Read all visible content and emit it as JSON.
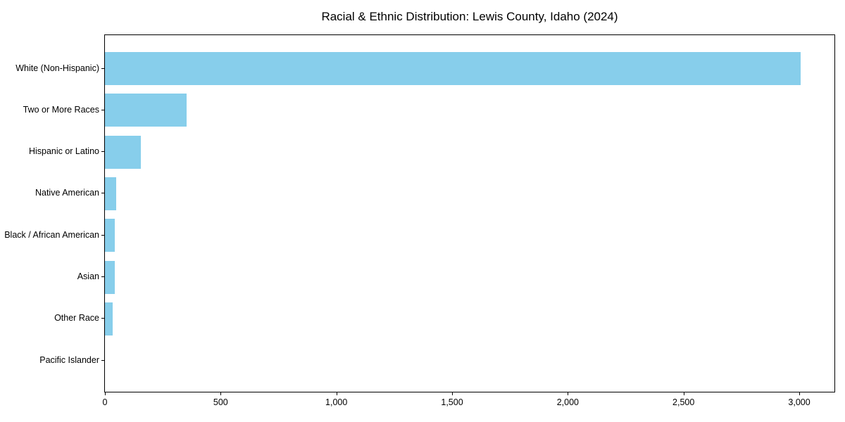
{
  "figure": {
    "background": "#ffffff"
  },
  "chart_data": {
    "type": "bar",
    "orientation": "horizontal",
    "title": "Racial & Ethnic Distribution: Lewis County, Idaho (2024)",
    "categories": [
      "White (Non-Hispanic)",
      "Two or More Races",
      "Hispanic or Latino",
      "Native American",
      "Black / African American",
      "Asian",
      "Other Race",
      "Pacific Islander"
    ],
    "values": [
      3005,
      353,
      155,
      48,
      44,
      42,
      34,
      0
    ],
    "bar_color": "#87ceeb",
    "xlabel": "",
    "ylabel": "",
    "xlim": [
      0,
      3152
    ],
    "x_ticks": [
      0,
      500,
      1000,
      1500,
      2000,
      2500,
      3000
    ],
    "x_tick_labels": [
      "0",
      "500",
      "1,000",
      "1,500",
      "2,000",
      "2,500",
      "3,000"
    ],
    "grid": false,
    "legend": "none",
    "axis_color": "#000000",
    "text_color": "#000000"
  }
}
